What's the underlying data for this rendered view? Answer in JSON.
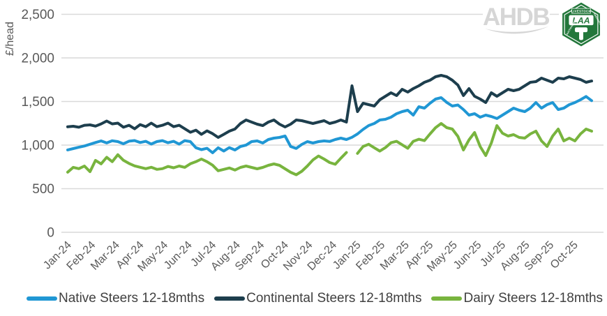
{
  "header": {
    "ahdb_logo_text": "AHDB",
    "laa_logo": {
      "top_text": "LIVESTOCK",
      "center_text": "LAA",
      "left_text": "AUCTIONEERS",
      "right_text": "ASSOCIATION"
    }
  },
  "chart_data": {
    "type": "line",
    "title": "",
    "xlabel": "",
    "ylabel": "£/head",
    "ylim": [
      0,
      2500
    ],
    "yticks": [
      0,
      500,
      1000,
      1500,
      2000,
      2500
    ],
    "ytick_labels": [
      "0",
      "500",
      "1,000",
      "1,500",
      "2,000",
      "2,500"
    ],
    "x_tick_labels": [
      "Jan-24",
      "Feb-24",
      "Mar-24",
      "Apr-24",
      "May-24",
      "Jun-24",
      "Jul-24",
      "Aug-24",
      "Sep-24",
      "Oct-24",
      "Nov-24",
      "Dec-24",
      "Jan-25",
      "Feb-25",
      "Mar-25",
      "Apr-25",
      "May-25",
      "Jun-25",
      "Jul-25",
      "Aug-25",
      "Sep-25",
      "Oct-25"
    ],
    "x_description": "weekly observations, Jan-24 to Oct-25 (values estimated from plot)",
    "grid": "horizontal",
    "legend_position": "bottom",
    "series": [
      {
        "name": "Native Steers 12-18mths",
        "color": "#2097d4",
        "values": [
          945,
          960,
          975,
          990,
          1010,
          1030,
          1048,
          1025,
          1050,
          1040,
          1015,
          1045,
          1052,
          1030,
          1043,
          1012,
          1040,
          1051,
          1027,
          1043,
          1011,
          1051,
          1040,
          970,
          948,
          963,
          912,
          970,
          932,
          971,
          944,
          984,
          1000,
          1040,
          1048,
          1024,
          1064,
          1080,
          1088,
          1104,
          984,
          962,
          1008,
          1040,
          1024,
          1040,
          1048,
          1042,
          1064,
          1080,
          1064,
          1090,
          1128,
          1180,
          1224,
          1248,
          1288,
          1296,
          1320,
          1360,
          1384,
          1400,
          1344,
          1440,
          1424,
          1480,
          1528,
          1544,
          1490,
          1448,
          1460,
          1408,
          1344,
          1360,
          1320,
          1344,
          1328,
          1305,
          1344,
          1384,
          1424,
          1400,
          1384,
          1424,
          1488,
          1424,
          1464,
          1488,
          1408,
          1424,
          1464,
          1488,
          1520,
          1558,
          1510
        ]
      },
      {
        "name": "Continental Steers 12-18mths",
        "color": "#1d3e4d",
        "values": [
          1210,
          1216,
          1205,
          1227,
          1232,
          1218,
          1243,
          1276,
          1243,
          1252,
          1205,
          1227,
          1187,
          1235,
          1211,
          1252,
          1211,
          1227,
          1252,
          1211,
          1227,
          1187,
          1147,
          1171,
          1123,
          1163,
          1131,
          1088,
          1123,
          1160,
          1184,
          1248,
          1288,
          1264,
          1240,
          1224,
          1264,
          1288,
          1240,
          1208,
          1240,
          1288,
          1280,
          1264,
          1248,
          1264,
          1280,
          1248,
          1264,
          1288,
          1264,
          1680,
          1384,
          1480,
          1464,
          1448,
          1520,
          1560,
          1600,
          1568,
          1640,
          1608,
          1648,
          1680,
          1720,
          1744,
          1784,
          1800,
          1784,
          1744,
          1688,
          1568,
          1648,
          1560,
          1528,
          1488,
          1600,
          1560,
          1600,
          1640,
          1624,
          1640,
          1680,
          1720,
          1728,
          1768,
          1744,
          1720,
          1768,
          1760,
          1784,
          1768,
          1752,
          1720,
          1735
        ]
      },
      {
        "name": "Dairy Steers 12-18mths",
        "color": "#78b43e",
        "values": [
          690,
          745,
          730,
          760,
          695,
          825,
          785,
          860,
          810,
          890,
          826,
          790,
          762,
          746,
          730,
          746,
          722,
          730,
          755,
          740,
          760,
          745,
          786,
          810,
          840,
          810,
          770,
          706,
          722,
          738,
          714,
          744,
          760,
          744,
          728,
          744,
          768,
          784,
          768,
          728,
          688,
          660,
          700,
          760,
          830,
          875,
          840,
          800,
          780,
          850,
          915,
          null,
          905,
          984,
          1010,
          970,
          931,
          971,
          1027,
          1043,
          1003,
          963,
          1043,
          1067,
          1051,
          1128,
          1200,
          1248,
          1200,
          1184,
          1100,
          944,
          1060,
          1144,
          984,
          880,
          1024,
          1224,
          1136,
          1104,
          1120,
          1088,
          1080,
          1128,
          1160,
          1048,
          984,
          1104,
          1184,
          1048,
          1080,
          1048,
          1128,
          1184,
          1160
        ]
      }
    ]
  }
}
